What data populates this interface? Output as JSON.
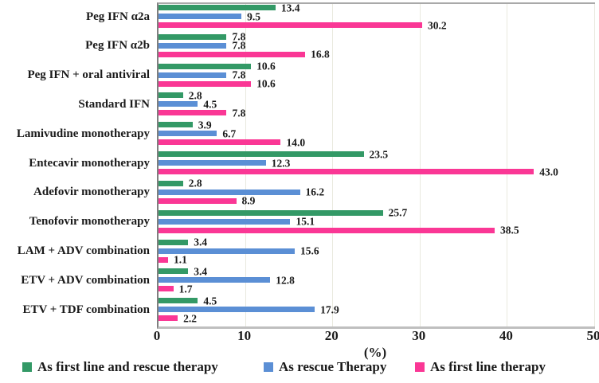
{
  "chart_data": {
    "type": "bar",
    "orientation": "horizontal",
    "title": "",
    "xlabel": "(%)",
    "xlim": [
      0,
      50
    ],
    "xticks": [
      0,
      10,
      20,
      30,
      40,
      50
    ],
    "grid": "vertical-light",
    "value_labels": "one-decimal",
    "legend_position": "bottom",
    "categories": [
      "Peg IFN α2a",
      "Peg IFN α2b",
      "Peg IFN + oral antiviral",
      "Standard IFN",
      "Lamivudine monotherapy",
      "Entecavir monotherapy",
      "Adefovir monotherapy",
      "Tenofovir monotherapy",
      "LAM + ADV combination",
      "ETV + ADV combination",
      "ETV + TDF combination"
    ],
    "series": [
      {
        "name": "As first line and rescue therapy",
        "color": "#339966",
        "values": [
          13.4,
          7.8,
          10.6,
          2.8,
          3.9,
          23.5,
          2.8,
          25.7,
          3.4,
          3.4,
          4.5
        ]
      },
      {
        "name": "As rescue Therapy",
        "color": "#5b8fd5",
        "values": [
          9.5,
          7.8,
          7.8,
          4.5,
          6.7,
          12.3,
          16.2,
          15.1,
          15.6,
          12.8,
          17.9
        ]
      },
      {
        "name": "As first line therapy",
        "color": "#fa3795",
        "values": [
          30.2,
          16.8,
          10.6,
          7.8,
          14.0,
          43.0,
          8.9,
          38.5,
          1.1,
          1.7,
          2.2
        ]
      }
    ],
    "colors": {
      "axis_line": "#7f7f7f",
      "plot_border": "#a9a9a9",
      "gridline": "#e9e9df",
      "text": "#1a1a1a"
    }
  }
}
